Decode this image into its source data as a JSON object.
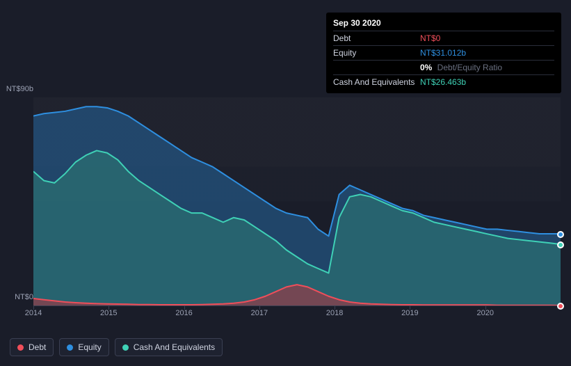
{
  "tooltip": {
    "date": "Sep 30 2020",
    "rows": [
      {
        "label": "Debt",
        "value": "NT$0",
        "color": "#f04e5a"
      },
      {
        "label": "Equity",
        "value": "NT$31.012b",
        "color": "#2e8fe0"
      },
      {
        "label": "",
        "ratio_value": "0%",
        "ratio_label": "Debt/Equity Ratio"
      },
      {
        "label": "Cash And Equivalents",
        "value": "NT$26.463b",
        "color": "#3fd1b6"
      }
    ]
  },
  "chart": {
    "type": "area",
    "background_color": "#1a1d29",
    "plot_bg_upper": "rgba(255,255,255,0.02)",
    "axis_color": "#3a3f52",
    "label_color": "#9ba1b3",
    "label_fontsize": 11,
    "x_years": [
      "2014",
      "2015",
      "2016",
      "2017",
      "2018",
      "2019",
      "2020"
    ],
    "y_top_label": "NT$90b",
    "y_bottom_label": "NT$0",
    "ylim": [
      0,
      90
    ],
    "series": {
      "equity": {
        "color": "#2e8fe0",
        "fill": "rgba(35, 90, 140, 0.65)",
        "values": [
          82,
          83,
          83.5,
          84,
          85,
          86,
          86,
          85.5,
          84,
          82,
          79,
          76,
          73,
          70,
          67,
          64,
          62,
          60,
          57,
          54,
          51,
          48,
          45,
          42,
          40,
          39,
          38,
          33,
          30,
          48,
          52,
          50,
          48,
          46,
          44,
          42,
          41,
          39,
          38,
          37,
          36,
          35,
          34,
          33,
          33,
          32.5,
          32,
          31.5,
          31,
          31,
          31.012
        ]
      },
      "cash": {
        "color": "#3fd1b6",
        "fill": "rgba(45, 120, 115, 0.6)",
        "values": [
          58,
          54,
          53,
          57,
          62,
          65,
          67,
          66,
          63,
          58,
          54,
          51,
          48,
          45,
          42,
          40,
          40,
          38,
          36,
          38,
          37,
          34,
          31,
          28,
          24,
          21,
          18,
          16,
          14,
          38,
          47,
          48,
          47,
          45,
          43,
          41,
          40,
          38,
          36,
          35,
          34,
          33,
          32,
          31,
          30,
          29,
          28.5,
          28,
          27.5,
          27,
          26.463
        ]
      },
      "debt": {
        "color": "#f04e5a",
        "fill": "rgba(180, 50, 60, 0.55)",
        "values": [
          3,
          2.5,
          2,
          1.5,
          1.2,
          1,
          0.8,
          0.7,
          0.6,
          0.5,
          0.4,
          0.4,
          0.3,
          0.3,
          0.3,
          0.3,
          0.4,
          0.5,
          0.7,
          1,
          1.5,
          2.5,
          4,
          6,
          8,
          9,
          8,
          6,
          4,
          2.5,
          1.5,
          1,
          0.7,
          0.5,
          0.4,
          0.3,
          0.3,
          0.2,
          0.2,
          0.2,
          0.2,
          0.2,
          0.2,
          0.2,
          0.1,
          0.1,
          0.1,
          0.1,
          0.1,
          0.05,
          0
        ]
      }
    },
    "end_markers": [
      {
        "series": "equity",
        "color": "#2e8fe0"
      },
      {
        "series": "cash",
        "color": "#3fd1b6"
      },
      {
        "series": "debt",
        "color": "#f04e5a"
      }
    ]
  },
  "legend": [
    {
      "label": "Debt",
      "color": "#f04e5a"
    },
    {
      "label": "Equity",
      "color": "#2e8fe0"
    },
    {
      "label": "Cash And Equivalents",
      "color": "#3fd1b6"
    }
  ]
}
